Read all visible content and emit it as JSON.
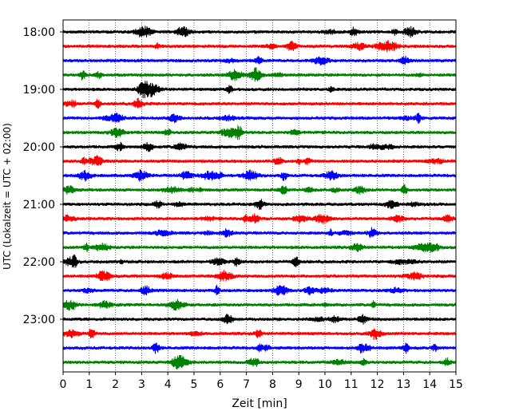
{
  "chart_data": {
    "type": "line",
    "title": "",
    "xlabel": "Zeit  [min]",
    "ylabel": "UTC (Lokalzeit = UTC + 02:00)",
    "xlim": [
      0,
      15
    ],
    "x_ticks": [
      "0",
      "1",
      "2",
      "3",
      "4",
      "5",
      "6",
      "7",
      "8",
      "9",
      "10",
      "11",
      "12",
      "13",
      "14",
      "15"
    ],
    "y_ticks": [
      "18:00",
      "19:00",
      "20:00",
      "21:00",
      "22:00",
      "23:00"
    ],
    "trace_interval_min": 15,
    "trace_colors": [
      "#000000",
      "#ff0000",
      "#0000ff",
      "#008000"
    ],
    "grid": "vertical dotted",
    "traces_start": "18:00",
    "traces_end": "23:45",
    "trace_count": 24
  }
}
